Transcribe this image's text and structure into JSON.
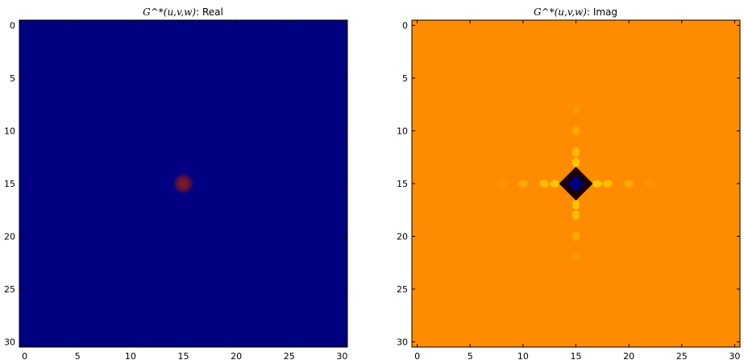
{
  "chart_data": [
    {
      "type": "heatmap",
      "title_math": "G^*(u,v,w)",
      "title_suffix": ": Real",
      "xlim": [
        -0.5,
        30.5
      ],
      "ylim": [
        30.5,
        -0.5
      ],
      "x_ticks": [
        0,
        5,
        10,
        15,
        20,
        25,
        30
      ],
      "y_ticks": [
        0,
        5,
        10,
        15,
        20,
        25,
        30
      ],
      "background_color": "#000080",
      "features": [
        {
          "kind": "spot",
          "x": 15,
          "y": 15,
          "color": "#8b1a1a",
          "spread": 0.6
        }
      ]
    },
    {
      "type": "heatmap",
      "title_math": "G^*(u,v,w)",
      "title_suffix": ": Imag",
      "xlim": [
        -0.5,
        30.5
      ],
      "ylim": [
        30.5,
        -0.5
      ],
      "x_ticks": [
        0,
        5,
        10,
        15,
        20,
        25,
        30
      ],
      "y_ticks": [
        0,
        5,
        10,
        15,
        20,
        25,
        30
      ],
      "background_color": "#ff8c00",
      "features": [
        {
          "kind": "cross",
          "x": 15,
          "y": 15,
          "center_color": "#00007f",
          "ring_color": "#1a0000",
          "ripple_color": "#ffe000"
        }
      ]
    }
  ]
}
